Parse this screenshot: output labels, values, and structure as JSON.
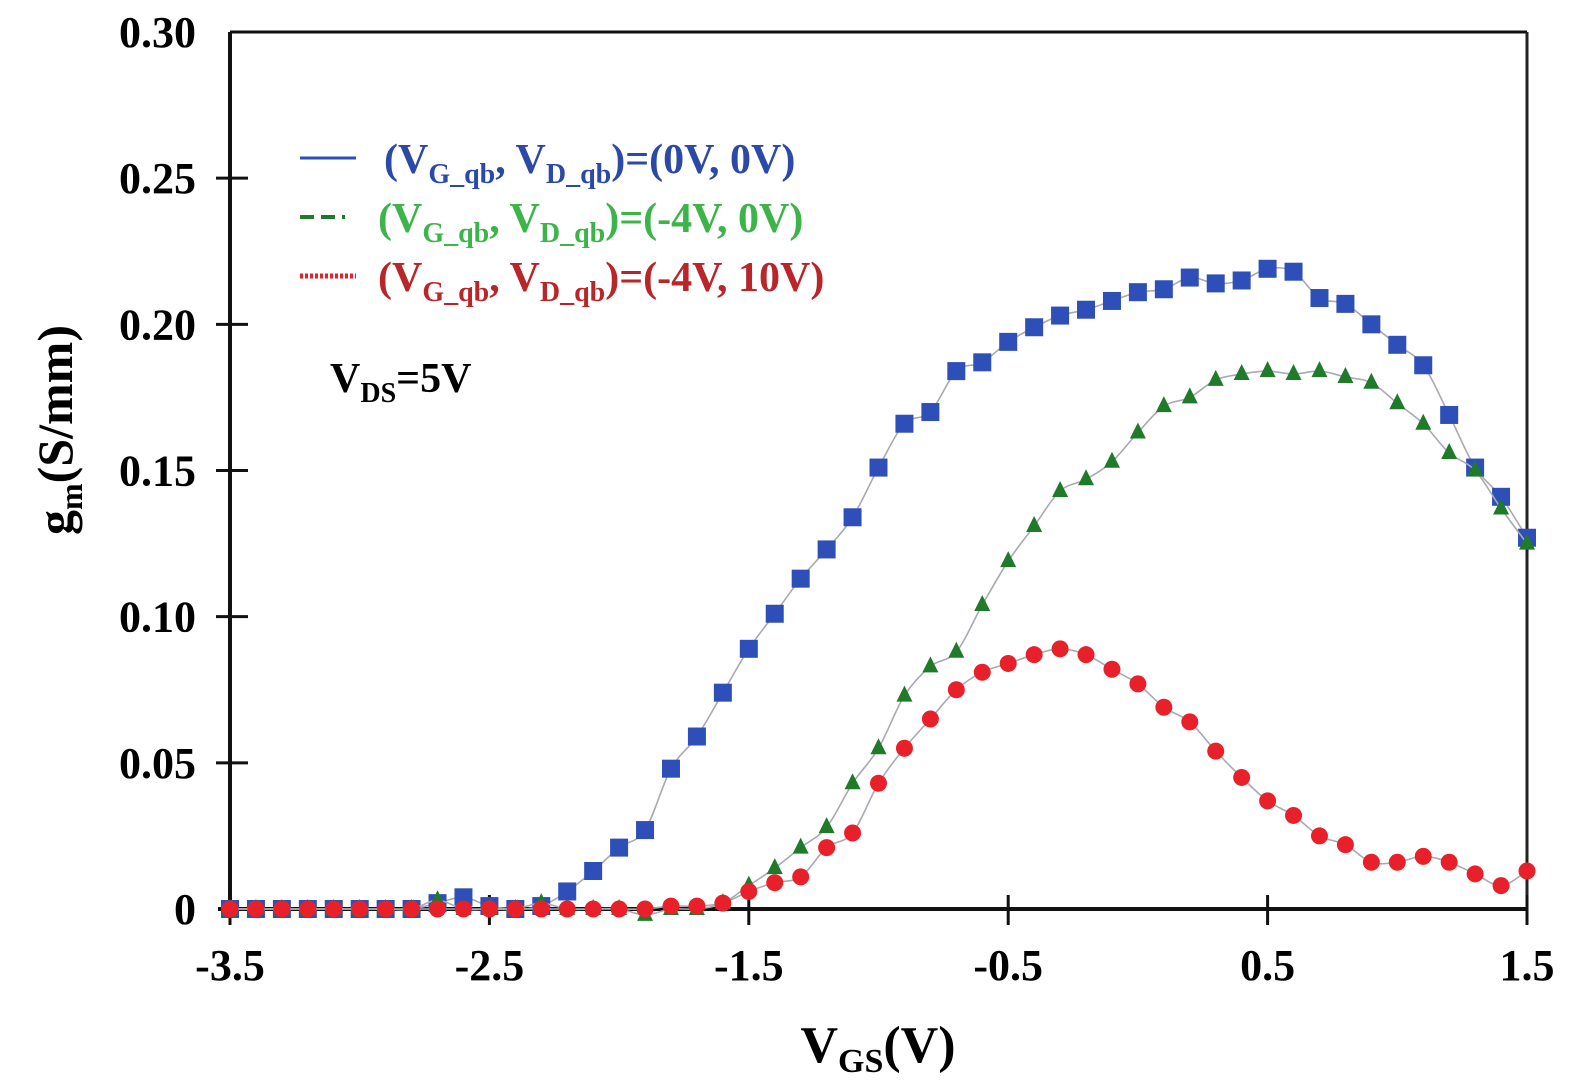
{
  "chart_data": {
    "type": "scatter",
    "title": "",
    "xlabel": {
      "main": "V",
      "sub": "GS",
      "rest": "(V)"
    },
    "ylabel": {
      "main": "g",
      "sub": "m",
      "rest": "(S/mm)"
    },
    "xlim": [
      -3.5,
      1.5
    ],
    "ylim": [
      0,
      0.3
    ],
    "xticks": [
      -3.5,
      -2.5,
      -1.5,
      -0.5,
      0.5,
      1.5
    ],
    "xtick_labels": [
      "-3.5",
      "-2.5",
      "-1.5",
      "-0.5",
      "0.5",
      "1.5"
    ],
    "yticks": [
      0,
      0.05,
      0.1,
      0.15,
      0.2,
      0.25,
      0.3
    ],
    "ytick_labels": [
      "0",
      "0.05",
      "0.10",
      "0.15",
      "0.20",
      "0.25",
      "0.30"
    ],
    "grid": false,
    "legend_position": "top-left",
    "annotation": {
      "main": "V",
      "sub": "DS",
      "rest": "=5V"
    },
    "x": [
      -3.5,
      -3.4,
      -3.3,
      -3.2,
      -3.1,
      -3.0,
      -2.9,
      -2.8,
      -2.7,
      -2.6,
      -2.5,
      -2.4,
      -2.3,
      -2.2,
      -2.1,
      -2.0,
      -1.9,
      -1.8,
      -1.7,
      -1.6,
      -1.5,
      -1.4,
      -1.3,
      -1.2,
      -1.1,
      -1.0,
      -0.9,
      -0.8,
      -0.7,
      -0.6,
      -0.5,
      -0.4,
      -0.3,
      -0.2,
      -0.1,
      0.0,
      0.1,
      0.2,
      0.3,
      0.4,
      0.5,
      0.6,
      0.7,
      0.8,
      0.9,
      1.0,
      1.1,
      1.2,
      1.3,
      1.4,
      1.5
    ],
    "series": [
      {
        "name": "(VG_qb, VD_qb)=(0V, 0V)",
        "legend": {
          "open": "(V",
          "sub1": "G_qb",
          "mid": ", V",
          "sub2": "D_qb",
          "close": ")=(0V, 0V)"
        },
        "color": "#2f4fb8",
        "text_color": "#2b4aa8",
        "marker": "square",
        "line_style": "solid",
        "values": [
          0,
          0,
          0,
          0,
          0,
          0,
          0,
          0,
          0.002,
          0.004,
          0.001,
          0.0,
          0.001,
          0.006,
          0.013,
          0.021,
          0.027,
          0.048,
          0.059,
          0.074,
          0.089,
          0.101,
          0.113,
          0.123,
          0.134,
          0.151,
          0.166,
          0.17,
          0.184,
          0.187,
          0.194,
          0.199,
          0.203,
          0.205,
          0.208,
          0.211,
          0.212,
          0.216,
          0.214,
          0.215,
          0.219,
          0.218,
          0.209,
          0.207,
          0.2,
          0.193,
          0.186,
          0.169,
          0.151,
          0.141,
          0.127
        ]
      },
      {
        "name": "(VG_qb, VD_qb)=(-4V, 0V)",
        "legend": {
          "open": "(V",
          "sub1": "G_qb",
          "mid": ", V",
          "sub2": "D_qb",
          "close": ")=(-4V, 0V)"
        },
        "color": "#1f7a2a",
        "text_color": "#3cb44a",
        "marker": "triangle",
        "line_style": "dashed",
        "values": [
          0,
          0,
          0,
          0,
          0,
          0,
          0,
          0,
          0.003,
          0.0,
          0,
          0,
          0.002,
          0,
          0.0,
          0.0,
          -0.002,
          0.0,
          0.0,
          0.002,
          0.008,
          0.014,
          0.021,
          0.028,
          0.043,
          0.055,
          0.073,
          0.083,
          0.088,
          0.104,
          0.119,
          0.131,
          0.143,
          0.147,
          0.153,
          0.163,
          0.172,
          0.175,
          0.181,
          0.183,
          0.184,
          0.183,
          0.184,
          0.182,
          0.18,
          0.173,
          0.166,
          0.156,
          0.15,
          0.137,
          0.125
        ]
      },
      {
        "name": "(VG_qb, VD_qb)=(-4V, 10V)",
        "legend": {
          "open": "(V",
          "sub1": "G_qb",
          "mid": ", V",
          "sub2": "D_qb",
          "close": ")=(-4V, 10V)"
        },
        "color": "#e8202a",
        "text_color": "#b8262a",
        "marker": "circle",
        "line_style": "dotted",
        "values": [
          0,
          0,
          0,
          0,
          0,
          0,
          0,
          0,
          0,
          0,
          0,
          0,
          0,
          0,
          0,
          0,
          0,
          0.001,
          0.001,
          0.002,
          0.006,
          0.009,
          0.011,
          0.021,
          0.026,
          0.043,
          0.055,
          0.065,
          0.075,
          0.081,
          0.084,
          0.087,
          0.089,
          0.087,
          0.082,
          0.077,
          0.069,
          0.064,
          0.054,
          0.045,
          0.037,
          0.032,
          0.025,
          0.022,
          0.016,
          0.016,
          0.018,
          0.016,
          0.012,
          0.008,
          0.013
        ]
      }
    ]
  }
}
